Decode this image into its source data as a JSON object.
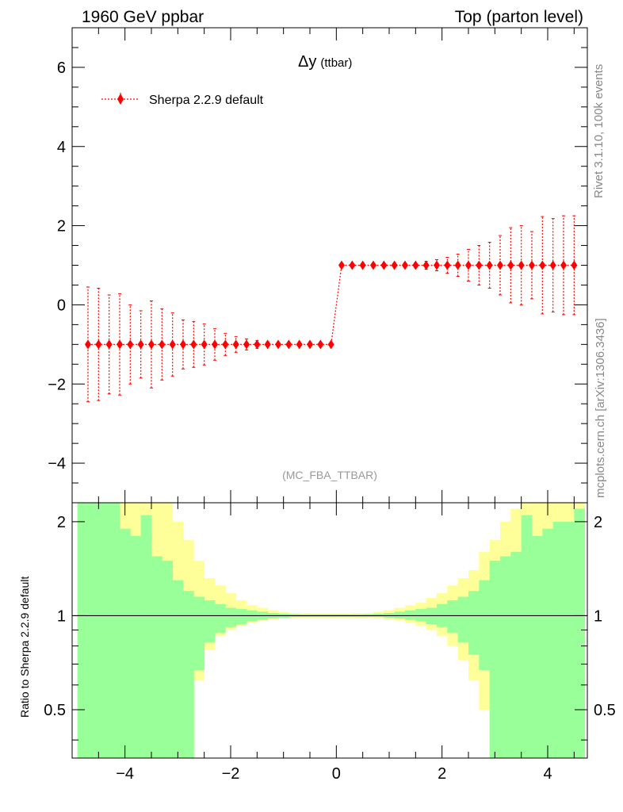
{
  "header": {
    "left": "1960 GeV ppbar",
    "right": "Top (parton level)"
  },
  "plot": {
    "title": "Δy",
    "title_sub": "(ttbar)",
    "analysis_tag": "(MC_FBA_TTBAR)",
    "side_text_top": "Rivet 3.1.10,  100k events",
    "side_text_bottom": "mcplots.cern.ch [arXiv:1306.3436]"
  },
  "colors": {
    "mc": "#ff0000",
    "band_inner": "#99ff99",
    "band_outer": "#ffff99"
  },
  "chart_data": [
    {
      "type": "scatter",
      "xlim": [
        -5,
        4.75
      ],
      "ylim": [
        -5,
        7
      ],
      "yticks": [
        -4,
        -2,
        0,
        2,
        4,
        6
      ],
      "xticks": [
        -4,
        -2,
        0,
        2,
        4
      ],
      "legend": {
        "entries": [
          "Sherpa 2.2.9 default"
        ],
        "placement": "top-left"
      },
      "series": [
        {
          "name": "Sherpa 2.2.9 default",
          "x": [
            -4.7,
            -4.5,
            -4.3,
            -4.1,
            -3.9,
            -3.7,
            -3.5,
            -3.3,
            -3.1,
            -2.9,
            -2.7,
            -2.5,
            -2.3,
            -2.1,
            -1.9,
            -1.7,
            -1.5,
            -1.3,
            -1.1,
            -0.9,
            -0.7,
            -0.5,
            -0.3,
            -0.1,
            0.1,
            0.3,
            0.5,
            0.7,
            0.9,
            1.1,
            1.3,
            1.5,
            1.7,
            1.9,
            2.1,
            2.3,
            2.5,
            2.7,
            2.9,
            3.1,
            3.3,
            3.5,
            3.7,
            3.9,
            4.1,
            4.3,
            4.5
          ],
          "y": [
            -1,
            -1,
            -1,
            -1,
            -1,
            -1,
            -1,
            -1,
            -1,
            -1,
            -1,
            -1,
            -1,
            -1,
            -1,
            -1,
            -1,
            -1,
            -1,
            -1,
            -1,
            -1,
            -1,
            -1,
            1,
            1,
            1,
            1,
            1,
            1,
            1,
            1,
            1,
            1,
            1,
            1,
            1,
            1,
            1,
            1,
            1,
            1,
            1,
            1,
            1,
            1,
            1
          ],
          "err": [
            1.45,
            1.42,
            1.25,
            1.28,
            1.0,
            0.85,
            1.1,
            0.9,
            0.8,
            0.62,
            0.58,
            0.52,
            0.4,
            0.28,
            0.2,
            0.14,
            0.1,
            0.06,
            0.04,
            0.02,
            0.01,
            0.01,
            0.0,
            0.0,
            0.0,
            0.0,
            0.0,
            0.01,
            0.01,
            0.02,
            0.04,
            0.06,
            0.1,
            0.14,
            0.2,
            0.28,
            0.4,
            0.5,
            0.58,
            0.75,
            0.95,
            1.0,
            0.85,
            1.23,
            1.18,
            1.25,
            1.25
          ]
        }
      ]
    },
    {
      "type": "area",
      "ylabel": "Ratio to Sherpa 2.2.9 default",
      "xlim": [
        -5,
        4.75
      ],
      "ylim": [
        0.35,
        2.3
      ],
      "yscale": "log",
      "yticks": [
        0.5,
        1,
        2
      ],
      "xticks": [
        -4,
        -2,
        0,
        2,
        4
      ],
      "reference_line": 1,
      "bins": {
        "edges": [
          -4.9,
          -4.7,
          -4.5,
          -4.3,
          -4.1,
          -3.9,
          -3.7,
          -3.5,
          -3.3,
          -3.1,
          -2.9,
          -2.7,
          -2.5,
          -2.3,
          -2.1,
          -1.9,
          -1.7,
          -1.5,
          -1.3,
          -1.1,
          -0.9,
          -0.7,
          -0.5,
          -0.3,
          -0.1,
          0.1,
          0.3,
          0.5,
          0.7,
          0.9,
          1.1,
          1.3,
          1.5,
          1.7,
          1.9,
          2.1,
          2.3,
          2.5,
          2.7,
          2.9,
          3.1,
          3.3,
          3.5,
          3.7,
          3.9,
          4.1,
          4.3,
          4.5,
          4.7
        ],
        "inner_up": [
          2.3,
          2.3,
          2.3,
          2.3,
          1.9,
          1.8,
          2.1,
          1.55,
          1.5,
          1.3,
          1.2,
          1.15,
          1.12,
          1.09,
          1.06,
          1.05,
          1.04,
          1.03,
          1.02,
          1.015,
          1.012,
          1.01,
          1.01,
          1.01,
          1.01,
          1.01,
          1.01,
          1.012,
          1.015,
          1.02,
          1.03,
          1.04,
          1.05,
          1.06,
          1.09,
          1.12,
          1.15,
          1.2,
          1.3,
          1.5,
          1.55,
          1.6,
          2.1,
          1.8,
          1.9,
          2.0,
          2.0,
          2.2
        ],
        "inner_dn": [
          0.3,
          0.3,
          0.3,
          0.3,
          0.3,
          0.3,
          0.3,
          0.3,
          0.3,
          0.3,
          0.3,
          0.67,
          0.82,
          0.88,
          0.92,
          0.94,
          0.96,
          0.97,
          0.98,
          0.985,
          0.99,
          0.99,
          0.99,
          0.99,
          0.99,
          0.99,
          0.99,
          0.99,
          0.99,
          0.985,
          0.98,
          0.97,
          0.96,
          0.94,
          0.92,
          0.88,
          0.82,
          0.75,
          0.67,
          0.3,
          0.3,
          0.3,
          0.3,
          0.3,
          0.3,
          0.3,
          0.3,
          0.3
        ],
        "outer_up": [
          2.3,
          2.3,
          2.3,
          2.3,
          2.3,
          2.3,
          2.3,
          2.3,
          2.3,
          2.0,
          1.75,
          1.5,
          1.32,
          1.25,
          1.18,
          1.12,
          1.08,
          1.06,
          1.04,
          1.03,
          1.02,
          1.02,
          1.015,
          1.015,
          1.015,
          1.015,
          1.02,
          1.02,
          1.03,
          1.04,
          1.06,
          1.08,
          1.1,
          1.14,
          1.18,
          1.25,
          1.32,
          1.4,
          1.6,
          1.75,
          2.0,
          2.2,
          2.3,
          2.3,
          2.3,
          2.3,
          2.3,
          2.3
        ],
        "outer_dn": [
          0.3,
          0.3,
          0.3,
          0.3,
          0.3,
          0.3,
          0.3,
          0.3,
          0.3,
          0.3,
          0.3,
          0.62,
          0.78,
          0.86,
          0.9,
          0.93,
          0.95,
          0.965,
          0.975,
          0.98,
          0.985,
          0.985,
          0.985,
          0.985,
          0.985,
          0.985,
          0.985,
          0.985,
          0.98,
          0.975,
          0.965,
          0.95,
          0.93,
          0.9,
          0.86,
          0.8,
          0.72,
          0.62,
          0.5,
          0.3,
          0.3,
          0.3,
          0.3,
          0.3,
          0.3,
          0.3,
          0.3,
          0.3
        ]
      }
    }
  ]
}
